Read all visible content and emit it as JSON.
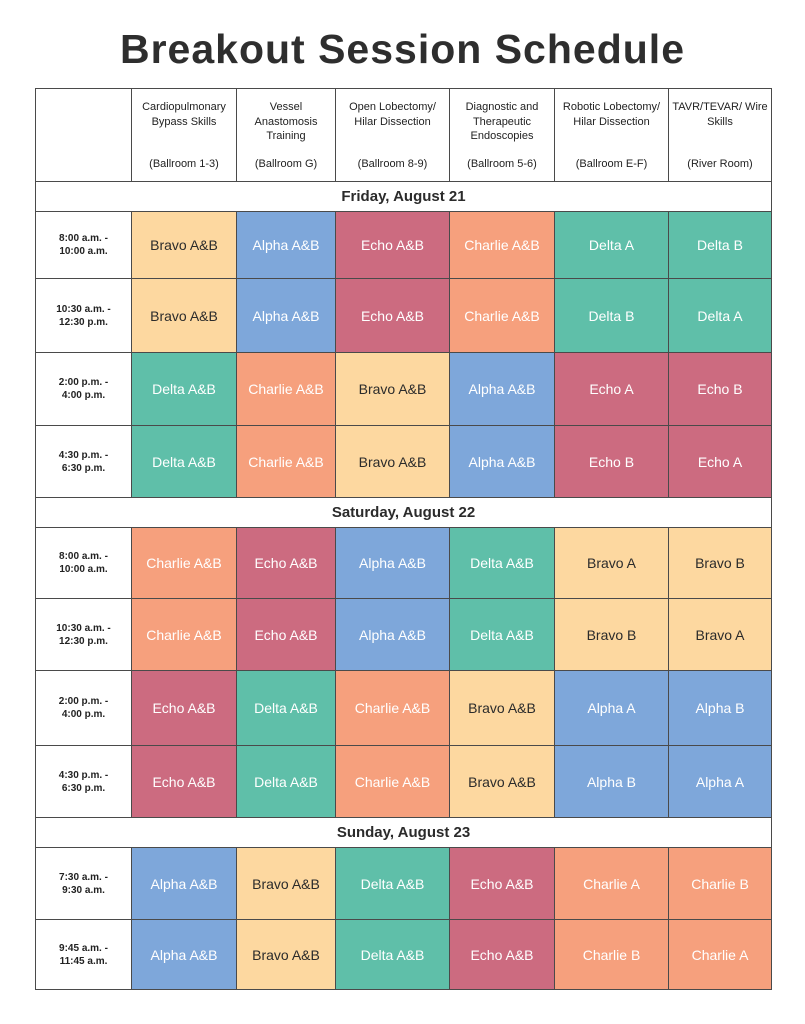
{
  "title": "Breakout Session Schedule",
  "columns": [
    {
      "name": "Cardiopulmonary Bypass Skills",
      "room": "(Ballroom 1-3)"
    },
    {
      "name": "Vessel Anastomosis Training",
      "room": "(Ballroom G)"
    },
    {
      "name": "Open Lobectomy/ Hilar Dissection",
      "room": "(Ballroom 8-9)"
    },
    {
      "name": "Diagnostic and Therapeutic Endoscopies",
      "room": "(Ballroom 5-6)"
    },
    {
      "name": "Robotic Lobectomy/ Hilar Dissection",
      "room": "(Ballroom E-F)"
    },
    {
      "name": "TAVR/TEVAR/ Wire Skills",
      "room": "(River Room)"
    }
  ],
  "group_colors": {
    "Alpha": "#7ea7da",
    "Bravo": "#fdd8a0",
    "Charlie": "#f6a07d",
    "Delta": "#5fbfa9",
    "Echo": "#cc6b80"
  },
  "days": [
    {
      "label": "Friday, August 21",
      "slots": [
        {
          "time": [
            "8:00 a.m. -",
            "10:00 a.m."
          ],
          "groups": [
            "Bravo A&B",
            "Alpha A&B",
            "Echo A&B",
            "Charlie A&B",
            "Delta A",
            "Delta B"
          ]
        },
        {
          "time": [
            "10:30 a.m. -",
            "12:30 p.m."
          ],
          "groups": [
            "Bravo A&B",
            "Alpha A&B",
            "Echo A&B",
            "Charlie A&B",
            "Delta B",
            "Delta A"
          ]
        },
        {
          "time": [
            "2:00 p.m. -",
            "4:00 p.m."
          ],
          "groups": [
            "Delta A&B",
            "Charlie A&B",
            "Bravo A&B",
            "Alpha A&B",
            "Echo A",
            "Echo B"
          ]
        },
        {
          "time": [
            "4:30 p.m. -",
            "6:30 p.m."
          ],
          "groups": [
            "Delta A&B",
            "Charlie A&B",
            "Bravo A&B",
            "Alpha A&B",
            "Echo B",
            "Echo A"
          ]
        }
      ]
    },
    {
      "label": "Saturday, August 22",
      "slots": [
        {
          "time": [
            "8:00 a.m. -",
            "10:00 a.m."
          ],
          "groups": [
            "Charlie A&B",
            "Echo A&B",
            "Alpha A&B",
            "Delta A&B",
            "Bravo A",
            "Bravo B"
          ]
        },
        {
          "time": [
            "10:30 a.m. -",
            "12:30 p.m."
          ],
          "groups": [
            "Charlie A&B",
            "Echo A&B",
            "Alpha A&B",
            "Delta A&B",
            "Bravo B",
            "Bravo A"
          ]
        },
        {
          "time": [
            "2:00 p.m. -",
            "4:00 p.m."
          ],
          "groups": [
            "Echo A&B",
            "Delta A&B",
            "Charlie A&B",
            "Bravo A&B",
            "Alpha A",
            "Alpha B"
          ]
        },
        {
          "time": [
            "4:30 p.m. -",
            "6:30 p.m."
          ],
          "groups": [
            "Echo A&B",
            "Delta A&B",
            "Charlie A&B",
            "Bravo A&B",
            "Alpha B",
            "Alpha A"
          ]
        }
      ]
    },
    {
      "label": "Sunday, August 23",
      "slots": [
        {
          "time": [
            "7:30 a.m. -",
            "9:30 a.m."
          ],
          "groups": [
            "Alpha A&B",
            "Bravo A&B",
            "Delta A&B",
            "Echo A&B",
            "Charlie A",
            "Charlie B"
          ]
        },
        {
          "time": [
            "9:45 a.m. -",
            "11:45 a.m."
          ],
          "groups": [
            "Alpha A&B",
            "Bravo A&B",
            "Delta A&B",
            "Echo A&B",
            "Charlie B",
            "Charlie A"
          ]
        }
      ]
    }
  ]
}
